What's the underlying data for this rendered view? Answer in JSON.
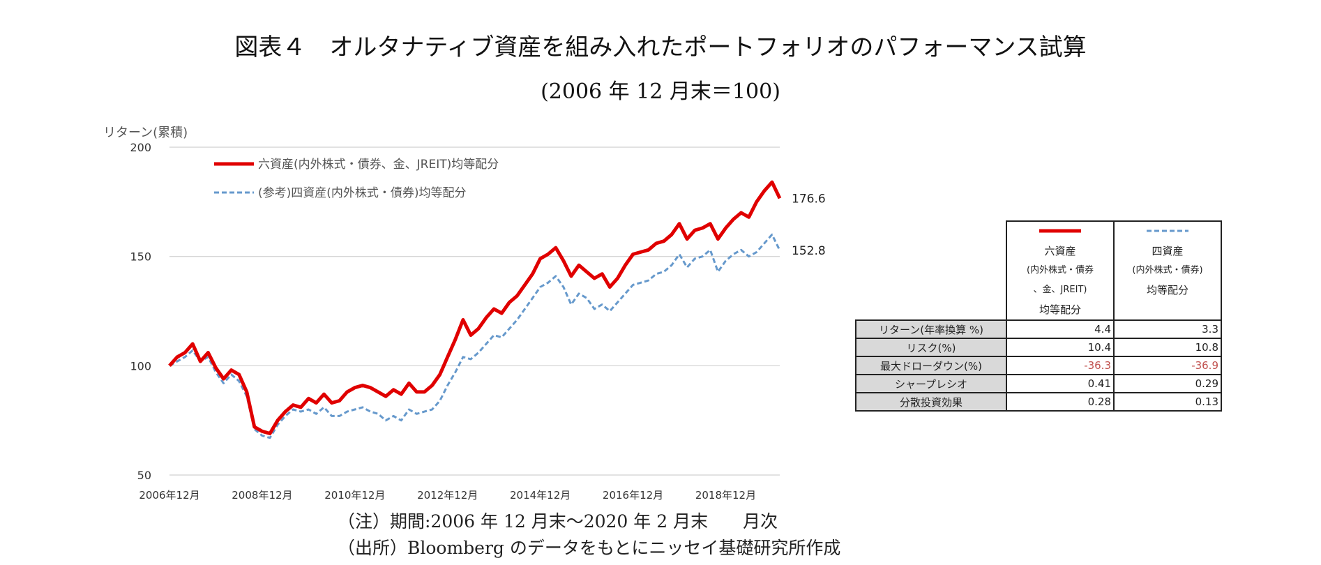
{
  "title": "図表４　オルタナティブ資産を組み入れたポートフォリオのパフォーマンス試算",
  "subtitle": "(2006 年 12 月末＝100)",
  "chart_data": {
    "type": "line",
    "ylabel": "リターン(累積)",
    "ylim": [
      50,
      200
    ],
    "yticks": [
      "200",
      "150",
      "100",
      "50"
    ],
    "xticks": [
      "2006年12月",
      "2008年12月",
      "2010年12月",
      "2012年12月",
      "2014年12月",
      "2016年12月",
      "2018年12月"
    ],
    "grid": true,
    "legend_position": "top-left",
    "series": [
      {
        "name": "六資産(内外株式・債券、金、JREIT)均等配分",
        "color": "#e00000",
        "style": "solid",
        "end_label": "176.6",
        "points": [
          [
            "2006-12",
            100
          ],
          [
            "2007-02",
            104
          ],
          [
            "2007-04",
            106
          ],
          [
            "2007-06",
            110
          ],
          [
            "2007-08",
            102
          ],
          [
            "2007-10",
            106
          ],
          [
            "2007-12",
            99
          ],
          [
            "2008-02",
            94
          ],
          [
            "2008-04",
            98
          ],
          [
            "2008-06",
            96
          ],
          [
            "2008-08",
            88
          ],
          [
            "2008-10",
            72
          ],
          [
            "2008-12",
            70
          ],
          [
            "2009-02",
            69
          ],
          [
            "2009-04",
            75
          ],
          [
            "2009-06",
            79
          ],
          [
            "2009-08",
            82
          ],
          [
            "2009-10",
            81
          ],
          [
            "2009-12",
            85
          ],
          [
            "2010-02",
            83
          ],
          [
            "2010-04",
            87
          ],
          [
            "2010-06",
            83
          ],
          [
            "2010-08",
            84
          ],
          [
            "2010-10",
            88
          ],
          [
            "2010-12",
            90
          ],
          [
            "2011-02",
            91
          ],
          [
            "2011-04",
            90
          ],
          [
            "2011-06",
            88
          ],
          [
            "2011-08",
            86
          ],
          [
            "2011-10",
            89
          ],
          [
            "2011-12",
            87
          ],
          [
            "2012-02",
            92
          ],
          [
            "2012-04",
            88
          ],
          [
            "2012-06",
            88
          ],
          [
            "2012-08",
            91
          ],
          [
            "2012-10",
            96
          ],
          [
            "2012-12",
            104
          ],
          [
            "2013-02",
            112
          ],
          [
            "2013-04",
            121
          ],
          [
            "2013-06",
            114
          ],
          [
            "2013-08",
            117
          ],
          [
            "2013-10",
            122
          ],
          [
            "2013-12",
            126
          ],
          [
            "2014-02",
            124
          ],
          [
            "2014-04",
            129
          ],
          [
            "2014-06",
            132
          ],
          [
            "2014-08",
            137
          ],
          [
            "2014-10",
            142
          ],
          [
            "2014-12",
            149
          ],
          [
            "2015-02",
            151
          ],
          [
            "2015-04",
            154
          ],
          [
            "2015-06",
            148
          ],
          [
            "2015-08",
            141
          ],
          [
            "2015-10",
            146
          ],
          [
            "2015-12",
            143
          ],
          [
            "2016-02",
            140
          ],
          [
            "2016-04",
            142
          ],
          [
            "2016-06",
            136
          ],
          [
            "2016-08",
            140
          ],
          [
            "2016-10",
            146
          ],
          [
            "2016-12",
            151
          ],
          [
            "2017-02",
            152
          ],
          [
            "2017-04",
            153
          ],
          [
            "2017-06",
            156
          ],
          [
            "2017-08",
            157
          ],
          [
            "2017-10",
            160
          ],
          [
            "2017-12",
            165
          ],
          [
            "2018-02",
            158
          ],
          [
            "2018-04",
            162
          ],
          [
            "2018-06",
            163
          ],
          [
            "2018-08",
            165
          ],
          [
            "2018-10",
            158
          ],
          [
            "2018-12",
            163
          ],
          [
            "2019-02",
            167
          ],
          [
            "2019-04",
            170
          ],
          [
            "2019-06",
            168
          ],
          [
            "2019-08",
            175
          ],
          [
            "2019-10",
            180
          ],
          [
            "2019-12",
            184
          ],
          [
            "2020-02",
            176.6
          ]
        ]
      },
      {
        "name": "(参考)四資産(内外株式・債券)均等配分",
        "color": "#6699cc",
        "style": "dashed",
        "end_label": "152.8",
        "points": [
          [
            "2006-12",
            100
          ],
          [
            "2007-02",
            102
          ],
          [
            "2007-04",
            104
          ],
          [
            "2007-06",
            107
          ],
          [
            "2007-08",
            102
          ],
          [
            "2007-10",
            104
          ],
          [
            "2007-12",
            97
          ],
          [
            "2008-02",
            92
          ],
          [
            "2008-04",
            96
          ],
          [
            "2008-06",
            93
          ],
          [
            "2008-08",
            86
          ],
          [
            "2008-10",
            71
          ],
          [
            "2008-12",
            68
          ],
          [
            "2009-02",
            67
          ],
          [
            "2009-04",
            73
          ],
          [
            "2009-06",
            77
          ],
          [
            "2009-08",
            80
          ],
          [
            "2009-10",
            79
          ],
          [
            "2009-12",
            80
          ],
          [
            "2010-02",
            78
          ],
          [
            "2010-04",
            81
          ],
          [
            "2010-06",
            77
          ],
          [
            "2010-08",
            77
          ],
          [
            "2010-10",
            79
          ],
          [
            "2010-12",
            80
          ],
          [
            "2011-02",
            81
          ],
          [
            "2011-04",
            79
          ],
          [
            "2011-06",
            78
          ],
          [
            "2011-08",
            75
          ],
          [
            "2011-10",
            77
          ],
          [
            "2011-12",
            75
          ],
          [
            "2012-02",
            80
          ],
          [
            "2012-04",
            78
          ],
          [
            "2012-06",
            79
          ],
          [
            "2012-08",
            80
          ],
          [
            "2012-10",
            84
          ],
          [
            "2012-12",
            91
          ],
          [
            "2013-02",
            97
          ],
          [
            "2013-04",
            104
          ],
          [
            "2013-06",
            103
          ],
          [
            "2013-08",
            106
          ],
          [
            "2013-10",
            110
          ],
          [
            "2013-12",
            114
          ],
          [
            "2014-02",
            113
          ],
          [
            "2014-04",
            117
          ],
          [
            "2014-06",
            121
          ],
          [
            "2014-08",
            126
          ],
          [
            "2014-10",
            131
          ],
          [
            "2014-12",
            136
          ],
          [
            "2015-02",
            138
          ],
          [
            "2015-04",
            141
          ],
          [
            "2015-06",
            136
          ],
          [
            "2015-08",
            128
          ],
          [
            "2015-10",
            133
          ],
          [
            "2015-12",
            131
          ],
          [
            "2016-02",
            126
          ],
          [
            "2016-04",
            128
          ],
          [
            "2016-06",
            125
          ],
          [
            "2016-08",
            129
          ],
          [
            "2016-10",
            133
          ],
          [
            "2016-12",
            137
          ],
          [
            "2017-02",
            138
          ],
          [
            "2017-04",
            139
          ],
          [
            "2017-06",
            142
          ],
          [
            "2017-08",
            143
          ],
          [
            "2017-10",
            146
          ],
          [
            "2017-12",
            151
          ],
          [
            "2018-02",
            145
          ],
          [
            "2018-04",
            149
          ],
          [
            "2018-06",
            150
          ],
          [
            "2018-08",
            153
          ],
          [
            "2018-10",
            143
          ],
          [
            "2018-12",
            148
          ],
          [
            "2019-02",
            151
          ],
          [
            "2019-04",
            153
          ],
          [
            "2019-06",
            150
          ],
          [
            "2019-08",
            152
          ],
          [
            "2019-10",
            156
          ],
          [
            "2019-12",
            160
          ],
          [
            "2020-02",
            152.8
          ]
        ]
      }
    ]
  },
  "table": {
    "col_headers": [
      {
        "lines": [
          "六資産",
          "(内外株式・債券",
          "、金、JREIT)",
          "均等配分"
        ],
        "color": "#e00000"
      },
      {
        "lines": [
          "四資産",
          "(内外株式・債券)",
          "均等配分"
        ],
        "color": "#6699cc"
      }
    ],
    "rows": [
      {
        "label": "リターン(年率換算 %)",
        "values": [
          "4.4",
          "3.3"
        ],
        "negative": false
      },
      {
        "label": "リスク(%)",
        "values": [
          "10.4",
          "10.8"
        ],
        "negative": false
      },
      {
        "label": "最大ドローダウン(%)",
        "values": [
          "-36.3",
          "-36.9"
        ],
        "negative": true
      },
      {
        "label": "シャープレシオ",
        "values": [
          "0.41",
          "0.29"
        ],
        "negative": false
      },
      {
        "label": "分散投資効果",
        "values": [
          "0.28",
          "0.13"
        ],
        "negative": false
      }
    ]
  },
  "notes": {
    "note1": "（注）期間:2006 年 12 月末～2020 年 2 月末　　月次",
    "note2": "（出所）Bloomberg のデータをもとにニッセイ基礎研究所作成"
  }
}
